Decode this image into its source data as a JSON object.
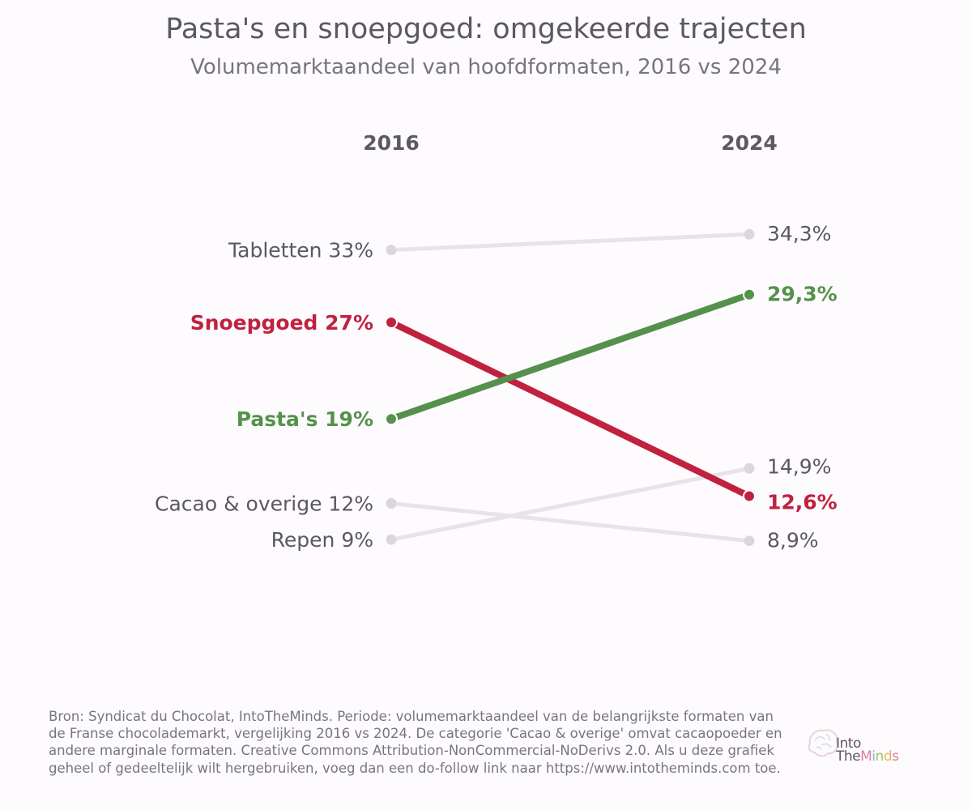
{
  "chart_data": {
    "type": "line",
    "title": "Pasta's en snoepgoed: omgekeerde trajecten",
    "subtitle": "Volumemarktaandeel van hoofdformaten, 2016 vs 2024",
    "x": [
      "2016",
      "2024"
    ],
    "series": [
      {
        "name": "Tabletten",
        "values": [
          33,
          34.3
        ],
        "label_start": "Tabletten  33%",
        "label_end": "34,3%",
        "color": "#e6e4e8",
        "highlight": false
      },
      {
        "name": "Snoepgoed",
        "values": [
          27,
          12.6
        ],
        "label_start": "Snoepgoed  27%",
        "label_end": "12,6%",
        "color": "#c0213f",
        "highlight": true
      },
      {
        "name": "Pasta's",
        "values": [
          19,
          29.3
        ],
        "label_start": "Pasta's  19%",
        "label_end": "29,3%",
        "color": "#55914c",
        "highlight": true
      },
      {
        "name": "Cacao & overige",
        "values": [
          12,
          8.9
        ],
        "label_start": "Cacao & overige  12%",
        "label_end": "8,9%",
        "color": "#e6e4e8",
        "highlight": false
      },
      {
        "name": "Repen",
        "values": [
          9,
          14.9
        ],
        "label_start": "Repen  9%",
        "label_end": "14,9%",
        "color": "#e6e4e8",
        "highlight": false
      }
    ],
    "ylim": [
      5,
      36
    ],
    "grid": false,
    "legend": "none"
  },
  "colors": {
    "background": "#fdfbfd",
    "text": "#5b595f",
    "muted_text": "#78767c",
    "context_line": "#e6e4e8",
    "context_dot": "#d9d7db",
    "snoepgoed": "#c0213f",
    "pastas": "#55914c"
  },
  "footer": {
    "source_note": "Bron: Syndicat du Chocolat, IntoTheMinds. Periode: volumemarktaandeel van de belangrijkste formaten van de Franse chocolademarkt, vergelijking 2016 vs 2024. De categorie 'Cacao & overige' omvat cacaopoeder en andere marginale formaten. Creative Commons Attribution-NonCommercial-NoDerivs 2.0. Als u deze grafiek geheel of gedeeltelijk wilt hergebruiken, voeg dan een do-follow link naar https://www.intotheminds.com toe."
  },
  "brand": {
    "line1": "Into",
    "line2_prefix": "The",
    "line2_letters": [
      "M",
      "i",
      "n",
      "d",
      "s"
    ],
    "logo_icon": "brain-icon"
  }
}
